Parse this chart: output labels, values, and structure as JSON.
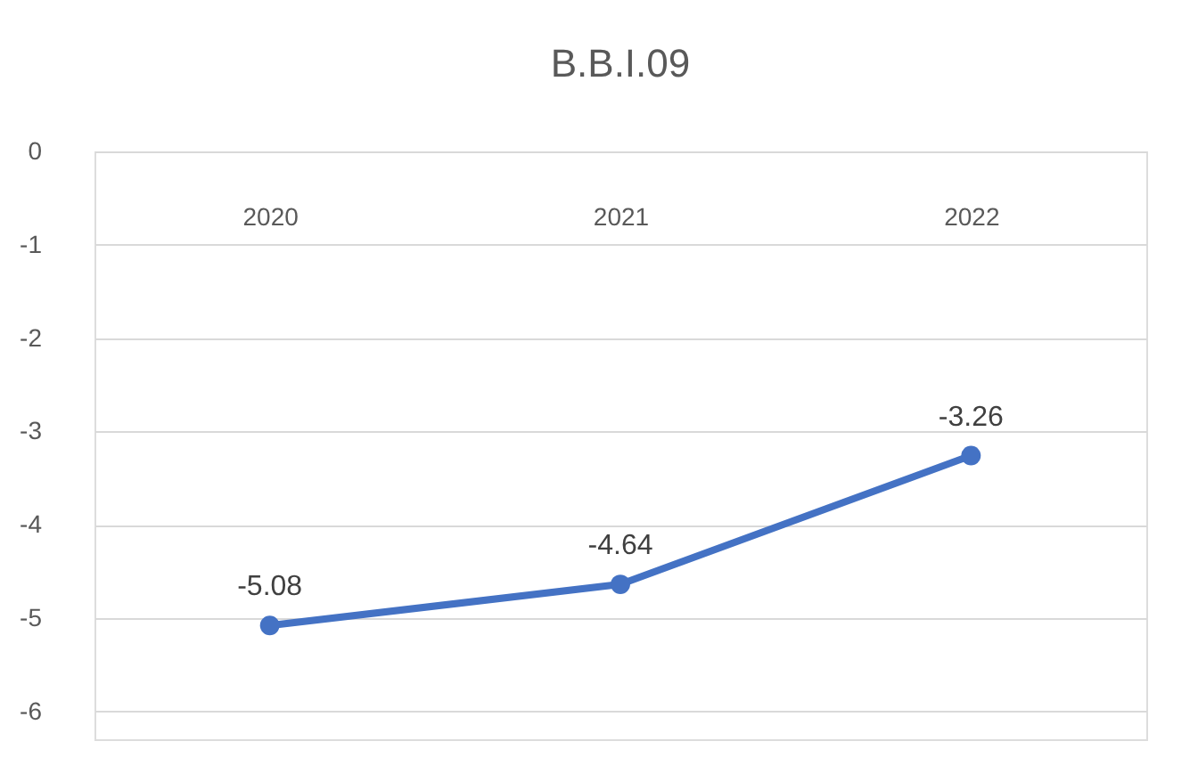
{
  "chart_data": {
    "type": "line",
    "title": "B.B.I.09",
    "categories": [
      "2020",
      "2021",
      "2022"
    ],
    "series": [
      {
        "color": "#4472c4",
        "values": [
          -5.08,
          -4.64,
          -3.26
        ]
      }
    ],
    "ylim": [
      -6.3,
      0
    ],
    "yticks": [
      0,
      -1,
      -2,
      -3,
      -4,
      -5,
      -6
    ],
    "grid": "y",
    "marker": "circle",
    "line_style": "solid",
    "data_labels": true,
    "legend": false
  }
}
